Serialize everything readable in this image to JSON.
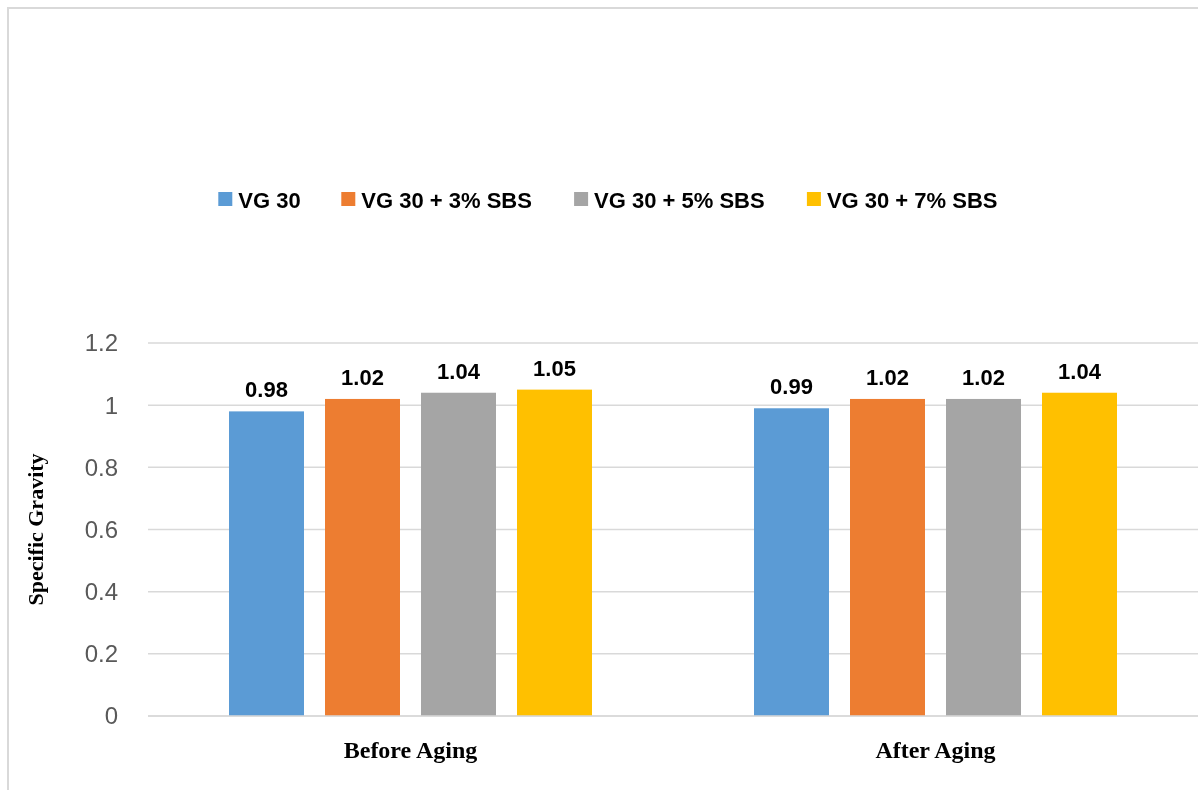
{
  "chart_data": {
    "type": "bar",
    "ylabel": "Specific Gravity",
    "categories": [
      "Before Aging",
      "After Aging"
    ],
    "series": [
      {
        "name": "VG 30",
        "color": "#5b9bd5",
        "values": [
          0.98,
          0.99
        ]
      },
      {
        "name": "VG 30 + 3% SBS",
        "color": "#ed7d31",
        "values": [
          1.02,
          1.02
        ]
      },
      {
        "name": "VG 30 + 5% SBS",
        "color": "#a5a5a5",
        "values": [
          1.04,
          1.02
        ]
      },
      {
        "name": "VG 30 + 7% SBS",
        "color": "#ffc000",
        "values": [
          1.05,
          1.04
        ]
      }
    ],
    "ylim": [
      0,
      1.2
    ],
    "yticks": [
      0,
      {
        "value": 0.2,
        "label": "0.2"
      },
      {
        "value": 0.4,
        "label": "0.4"
      },
      {
        "value": 0.6,
        "label": "0.6"
      },
      {
        "value": 0.8,
        "label": "0.8"
      },
      1,
      {
        "value": 1.2,
        "label": "1.2"
      }
    ],
    "grid": "y",
    "legend": "top",
    "data_labels": true
  }
}
